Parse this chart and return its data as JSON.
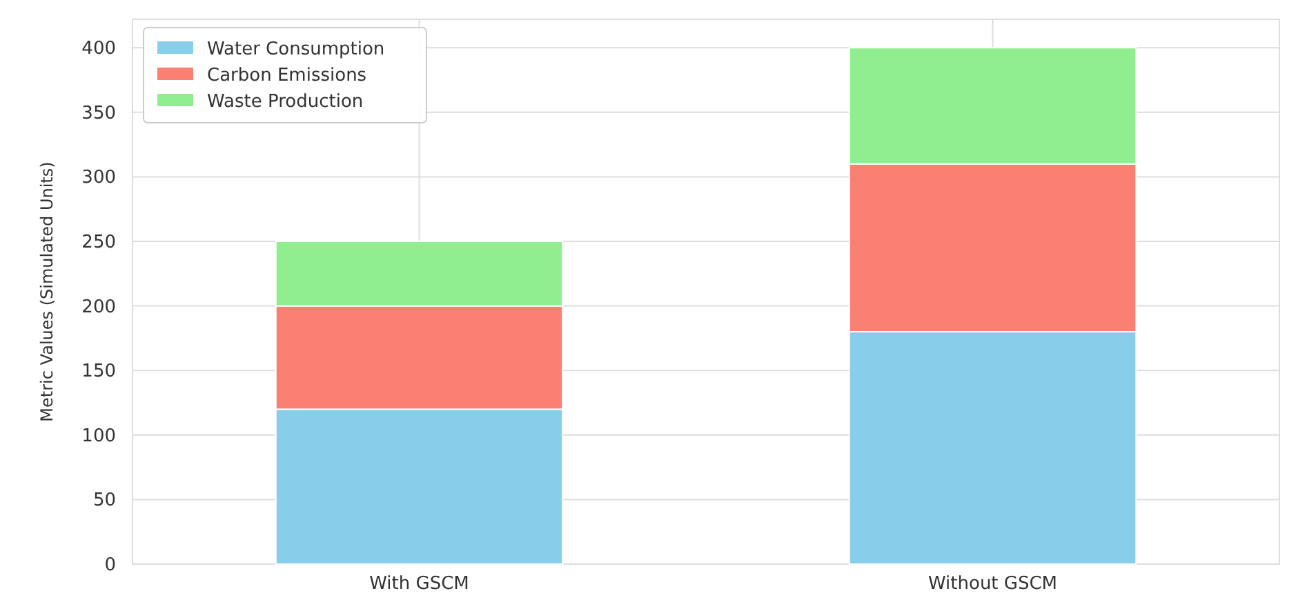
{
  "chart_data": {
    "type": "bar",
    "stacked": true,
    "ylabel": "Metric Values (Simulated Units)",
    "categories": [
      "With GSCM",
      "Without GSCM"
    ],
    "series": [
      {
        "name": "Water Consumption",
        "color": "#87ceeb",
        "values": [
          120,
          180
        ]
      },
      {
        "name": "Carbon Emissions",
        "color": "#fa8072",
        "values": [
          80,
          130
        ]
      },
      {
        "name": "Waste Production",
        "color": "#90ee90",
        "values": [
          50,
          90
        ]
      }
    ],
    "ylim": [
      0,
      422
    ],
    "yticks": [
      0,
      50,
      100,
      150,
      200,
      250,
      300,
      350,
      400
    ],
    "grid": true,
    "legend": "top left"
  }
}
